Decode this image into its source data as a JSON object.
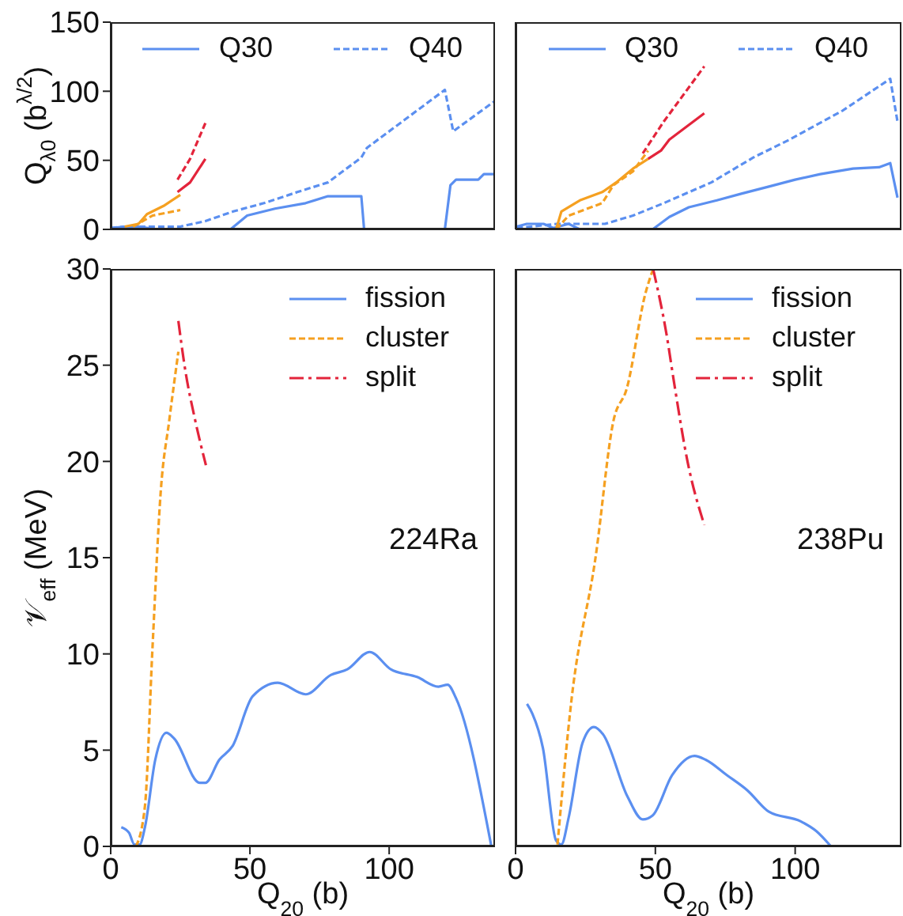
{
  "chart_data": [
    {
      "type": "line",
      "ylabel": "Q$_{λ0}$ (b$^{λ/2}$)",
      "xlim": [
        0,
        138
      ],
      "xticks": [
        0,
        50,
        100
      ],
      "ylim": [
        0,
        150
      ],
      "yticks": [
        0,
        50,
        100,
        150
      ],
      "tick_labels": "y",
      "legend": "top",
      "series": [
        {
          "name": "Q30",
          "color": "#5b8ff0",
          "line_style": "solid",
          "x": [
            0,
            5,
            10,
            17,
            43,
            49,
            59,
            70,
            78,
            90,
            91,
            120,
            122,
            124,
            132,
            134,
            138
          ],
          "values": [
            1,
            2,
            2,
            0,
            0,
            10,
            15,
            19,
            24,
            24,
            0,
            0,
            32,
            36,
            36,
            40,
            40
          ]
        },
        {
          "name": "Q40",
          "color": "#5b8ff0",
          "line_style": "dashed",
          "x": [
            0,
            5,
            15,
            25,
            34,
            44,
            55,
            67,
            78,
            90,
            92,
            120,
            123,
            138
          ],
          "values": [
            1,
            2,
            2,
            2,
            6,
            13,
            19,
            27,
            34,
            52,
            59,
            101,
            71,
            93
          ]
        },
        {
          "color": "#f5a020",
          "line_style": "solid",
          "x": [
            5,
            10,
            13,
            19,
            25
          ],
          "values": [
            2,
            4,
            11,
            17,
            25
          ]
        },
        {
          "color": "#f5a020",
          "line_style": "dashed",
          "x": [
            8,
            15,
            25
          ],
          "values": [
            2,
            10,
            14
          ]
        },
        {
          "color": "#e3243b",
          "line_style": "solid",
          "x": [
            24,
            28.5,
            34
          ],
          "values": [
            27,
            34,
            51
          ]
        },
        {
          "color": "#e3243b",
          "line_style": "dashed",
          "x": [
            24,
            28.5,
            34
          ],
          "values": [
            36,
            51,
            77
          ]
        }
      ]
    },
    {
      "type": "line",
      "xlim": [
        0,
        138
      ],
      "xticks": [
        0,
        50,
        100
      ],
      "ylim": [
        0,
        150
      ],
      "yticks": [
        0,
        50,
        100,
        150
      ],
      "tick_labels": false,
      "legend": "top",
      "series": [
        {
          "name": "Q30",
          "color": "#5b8ff0",
          "line_style": "solid",
          "x": [
            0.4,
            4,
            10,
            13.5,
            19,
            23,
            49,
            55,
            62,
            72,
            81,
            90.6,
            100,
            109,
            120.7,
            130,
            134,
            136.6
          ],
          "values": [
            2,
            4,
            4,
            1,
            4,
            0,
            0,
            9,
            16,
            21,
            26,
            31,
            36,
            40,
            44,
            45,
            48,
            23
          ]
        },
        {
          "name": "Q40",
          "color": "#5b8ff0",
          "line_style": "dashed",
          "x": [
            0.4,
            15,
            32,
            42,
            53,
            70,
            85,
            98,
            117,
            134,
            136.6
          ],
          "values": [
            1,
            4,
            4,
            10,
            19,
            34,
            52,
            65,
            86,
            109,
            78
          ]
        },
        {
          "color": "#f5a020",
          "line_style": "solid",
          "x": [
            14.5,
            16.4,
            23,
            31,
            36,
            42,
            47.4
          ],
          "values": [
            0,
            13,
            21,
            27,
            34,
            44,
            51
          ]
        },
        {
          "color": "#f5a020",
          "line_style": "dashed",
          "x": [
            14.5,
            19,
            31,
            35,
            42,
            47.4
          ],
          "values": [
            0,
            10,
            19,
            32,
            42,
            57
          ]
        },
        {
          "color": "#e3243b",
          "line_style": "solid",
          "x": [
            47.4,
            52,
            55,
            67.5
          ],
          "values": [
            51,
            57,
            65,
            84
          ]
        },
        {
          "color": "#e3243b",
          "line_style": "dashed",
          "x": [
            45.5,
            53,
            67.5
          ],
          "values": [
            55,
            78,
            118
          ]
        }
      ]
    },
    {
      "type": "line",
      "xlabel": "Q$_{20}$ (b)",
      "ylabel": "𝒱$_{eff}$ (MeV)",
      "xlim": [
        0,
        138
      ],
      "xticks": [
        0,
        50,
        100
      ],
      "ylim": [
        0,
        30
      ],
      "yticks": [
        0,
        5,
        10,
        15,
        20,
        25,
        30
      ],
      "legend": "top right",
      "annotations": [
        "224Ra"
      ],
      "series": [
        {
          "name": "fission",
          "color": "#5b8ff0",
          "line_style": "solid",
          "x": [
            3.8,
            6.6,
            8.5,
            10.4,
            12.3,
            16,
            20,
            22.8,
            32,
            34,
            39,
            43.7,
            51,
            60,
            70,
            79,
            85,
            93,
            100.6,
            110,
            117.7,
            121,
            124,
            136.7
          ],
          "values": [
            1,
            0.7,
            0.1,
            0.1,
            1,
            4.5,
            5.9,
            5.6,
            3.3,
            3.3,
            4.5,
            5.2,
            7.8,
            8.5,
            7.9,
            8.9,
            9.2,
            10.1,
            9.2,
            8.8,
            8.3,
            8.4,
            7.7,
            0
          ]
        },
        {
          "name": "cluster",
          "color": "#f5a020",
          "line_style": "dashed",
          "x": [
            9.1,
            12.3,
            15,
            18,
            21,
            24.3
          ],
          "values": [
            0,
            2.1,
            10.3,
            18.5,
            22.1,
            25.7
          ]
        },
        {
          "name": "split",
          "color": "#e3243b",
          "line_style": "dashdot",
          "x": [
            24.3,
            26.6,
            30.4,
            34.2
          ],
          "values": [
            27.3,
            24.9,
            22.1,
            19.8
          ]
        }
      ]
    },
    {
      "type": "line",
      "xlabel": "Q$_{20}$ (b)",
      "xlim": [
        0,
        138
      ],
      "xticks": [
        0,
        50,
        100
      ],
      "ylim": [
        0,
        30
      ],
      "yticks": [
        0,
        5,
        10,
        15,
        20,
        25,
        30
      ],
      "tick_labels": "x",
      "legend": "top right",
      "annotations": [
        "238Pu"
      ],
      "series": [
        {
          "name": "fission",
          "color": "#5b8ff0",
          "line_style": "solid",
          "x": [
            4.1,
            6,
            9.8,
            14.5,
            16.4,
            19,
            24,
            28,
            31.4,
            40,
            45.5,
            49,
            56,
            64,
            68,
            75.6,
            83,
            90.6,
            102,
            107.5,
            112.8
          ],
          "values": [
            7.4,
            6.9,
            5.1,
            0.3,
            0.1,
            1.5,
            5.4,
            6.2,
            5.8,
            2.6,
            1.4,
            1.6,
            3.7,
            4.7,
            4.5,
            3.7,
            2.9,
            1.8,
            1.3,
            0.8,
            0
          ]
        },
        {
          "name": "cluster",
          "color": "#f5a020",
          "line_style": "dashed",
          "x": [
            15,
            20,
            28.6,
            35,
            39.8,
            46.4,
            49.2
          ],
          "values": [
            0.1,
            7.6,
            15,
            22.1,
            23.8,
            28.7,
            30
          ]
        },
        {
          "name": "split",
          "color": "#e3243b",
          "line_style": "dashdot",
          "x": [
            49.2,
            54,
            56.8,
            61.5,
            67.5
          ],
          "values": [
            30,
            26.6,
            24,
            20,
            16.7
          ]
        }
      ]
    }
  ]
}
